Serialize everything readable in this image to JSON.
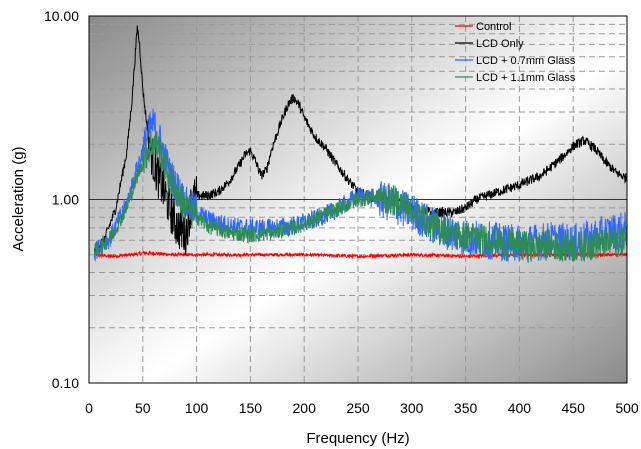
{
  "chart_data": {
    "type": "line",
    "title": "",
    "xlabel": "Frequency (Hz)",
    "ylabel": "Acceleration (g)",
    "xlim": [
      0,
      500
    ],
    "ylim": [
      0.1,
      10
    ],
    "yscale": "log",
    "x_ticks": [
      0,
      50,
      100,
      150,
      200,
      250,
      300,
      350,
      400,
      450,
      500
    ],
    "x_tick_labels": [
      "0",
      "50",
      "100",
      "150",
      "200",
      "250",
      "300",
      "350",
      "400",
      "450",
      "500"
    ],
    "y_ticks": [
      0.1,
      1,
      10
    ],
    "y_tick_labels": [
      "0.10",
      "1.00",
      "10.00"
    ],
    "grid": "dashed",
    "legend_position": "top-right",
    "plot_background": "gray-gradient",
    "series": [
      {
        "name": "Control",
        "color": "#ff0000",
        "x": [
          5,
          20,
          40,
          50,
          60,
          80,
          100,
          150,
          200,
          250,
          300,
          350,
          400,
          450,
          500
        ],
        "y": [
          0.5,
          0.49,
          0.5,
          0.51,
          0.51,
          0.5,
          0.5,
          0.5,
          0.5,
          0.49,
          0.5,
          0.49,
          0.5,
          0.5,
          0.5
        ],
        "noise": 0.02
      },
      {
        "name": "LCD Only",
        "color": "#000000",
        "x": [
          5,
          15,
          25,
          35,
          40,
          43,
          45,
          47,
          50,
          55,
          60,
          65,
          70,
          75,
          80,
          85,
          90,
          95,
          100,
          110,
          120,
          130,
          140,
          145,
          150,
          155,
          160,
          165,
          170,
          180,
          185,
          190,
          195,
          200,
          210,
          220,
          230,
          240,
          250,
          260,
          270,
          280,
          290,
          300,
          320,
          340,
          350,
          360,
          380,
          400,
          420,
          440,
          450,
          460,
          470,
          480,
          490,
          500
        ],
        "y": [
          0.52,
          0.62,
          0.9,
          1.8,
          3.5,
          6.2,
          8.7,
          7.0,
          4.0,
          2.2,
          1.6,
          1.3,
          1.1,
          0.9,
          0.75,
          0.68,
          0.65,
          0.95,
          1.05,
          1.05,
          1.1,
          1.25,
          1.55,
          1.75,
          1.85,
          1.6,
          1.35,
          1.45,
          1.9,
          2.8,
          3.3,
          3.6,
          3.3,
          2.8,
          2.2,
          1.9,
          1.55,
          1.3,
          1.1,
          1.05,
          1.0,
          1.0,
          0.98,
          0.9,
          0.85,
          0.85,
          0.9,
          1.0,
          1.1,
          1.2,
          1.35,
          1.7,
          1.95,
          2.1,
          1.9,
          1.6,
          1.4,
          1.3
        ],
        "noise": 0.06
      },
      {
        "name": "LCD + 0.7mm Glass",
        "color": "#3366ff",
        "x": [
          5,
          20,
          35,
          45,
          55,
          60,
          65,
          75,
          90,
          110,
          130,
          150,
          170,
          190,
          210,
          230,
          250,
          270,
          290,
          300,
          320,
          340,
          350,
          370,
          390,
          410,
          430,
          450,
          470,
          480,
          490,
          500
        ],
        "y": [
          0.52,
          0.62,
          0.95,
          1.5,
          2.3,
          2.6,
          2.2,
          1.4,
          0.95,
          0.78,
          0.72,
          0.7,
          0.7,
          0.72,
          0.78,
          0.88,
          1.05,
          1.0,
          0.9,
          0.85,
          0.72,
          0.65,
          0.62,
          0.6,
          0.58,
          0.58,
          0.6,
          0.58,
          0.62,
          0.65,
          0.67,
          0.68
        ],
        "noise": 0.12
      },
      {
        "name": "LCD + 1.1mm Glass",
        "color": "#2e8b57",
        "x": [
          5,
          20,
          35,
          45,
          55,
          60,
          65,
          75,
          90,
          110,
          130,
          150,
          170,
          190,
          210,
          230,
          250,
          270,
          290,
          300,
          320,
          340,
          350,
          370,
          390,
          410,
          430,
          450,
          470,
          480,
          490,
          500
        ],
        "y": [
          0.52,
          0.62,
          0.9,
          1.35,
          1.9,
          2.05,
          1.9,
          1.3,
          0.9,
          0.72,
          0.66,
          0.64,
          0.66,
          0.7,
          0.78,
          0.88,
          1.0,
          1.05,
          0.95,
          0.88,
          0.72,
          0.65,
          0.63,
          0.6,
          0.57,
          0.55,
          0.57,
          0.55,
          0.57,
          0.58,
          0.59,
          0.6
        ],
        "noise": 0.1
      }
    ]
  }
}
